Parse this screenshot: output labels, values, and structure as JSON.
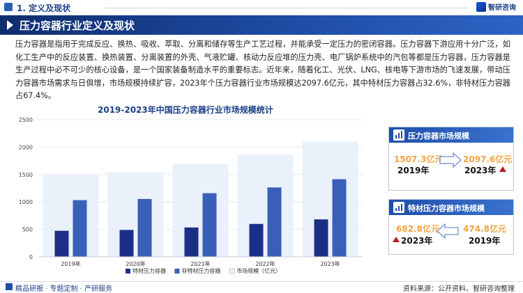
{
  "section": {
    "title": "1. 定义及现状"
  },
  "logo": {
    "text": "智研咨询"
  },
  "banner": {
    "title": "压力容器行业定义及现状"
  },
  "paragraph": "压力容器是指用于完成反应、换热、吸收、萃取、分离和储存等生产工艺过程，并能承受一定压力的密闭容器。压力容器下游应用十分广泛，如化工生产中的反应装置、换热装置、分离装置的外壳、气液贮罐、核动力反应堆的压力壳、电厂锅炉系统中的汽包等都是压力容器，压力容器是生产过程中必不可少的核心设备，是一个国家装备制造水平的重要标志。近年来，随着化工、光伏、LNG、核电等下游市场的飞速发展，带动压力容器市场需求与日俱增，市场规模持续扩容，2023年个压力容器行业市场规模达2097.6亿元，其中特材压力容器占32.6%，非特材压力容器占67.4%。",
  "chart_data": {
    "type": "bar",
    "title": "2019-2023年中国压力容器行业市场规模统计",
    "categories": [
      "2019年",
      "2020年",
      "2021年",
      "2022年",
      "2023年"
    ],
    "series": [
      {
        "name": "特材压力容器",
        "values": [
          474.8,
          490,
          535,
          600,
          682.8
        ],
        "color": "#1c2f86"
      },
      {
        "name": "非特材压力容器",
        "values": [
          1032.5,
          1055,
          1160,
          1265,
          1414.8
        ],
        "color": "#3a5fb8"
      },
      {
        "name": "市场规模（亿元）",
        "values": [
          1507.3,
          1545,
          1695,
          1865,
          2097.6
        ],
        "color": "#eaf1fa"
      }
    ],
    "yticks": [
      0,
      500,
      1000,
      1500,
      2000,
      2500
    ],
    "ylim": [
      0,
      2500
    ],
    "legend": "bottom"
  },
  "panel_market": {
    "title": "压力容器市场规模",
    "from_value": "1507.3亿元",
    "from_year": "2019年",
    "to_value": "2097.6亿元",
    "to_year": "2023年"
  },
  "panel_special": {
    "title": "特材压力容器市场规模",
    "left_value": "682.8亿元",
    "left_year": "2023年",
    "right_value": "474.8亿元",
    "right_year": "2019年"
  },
  "footer": {
    "left": "精品研报 · 专题定制 · 产研服务",
    "right": "资料来源：公开资料、智研咨询整理"
  }
}
